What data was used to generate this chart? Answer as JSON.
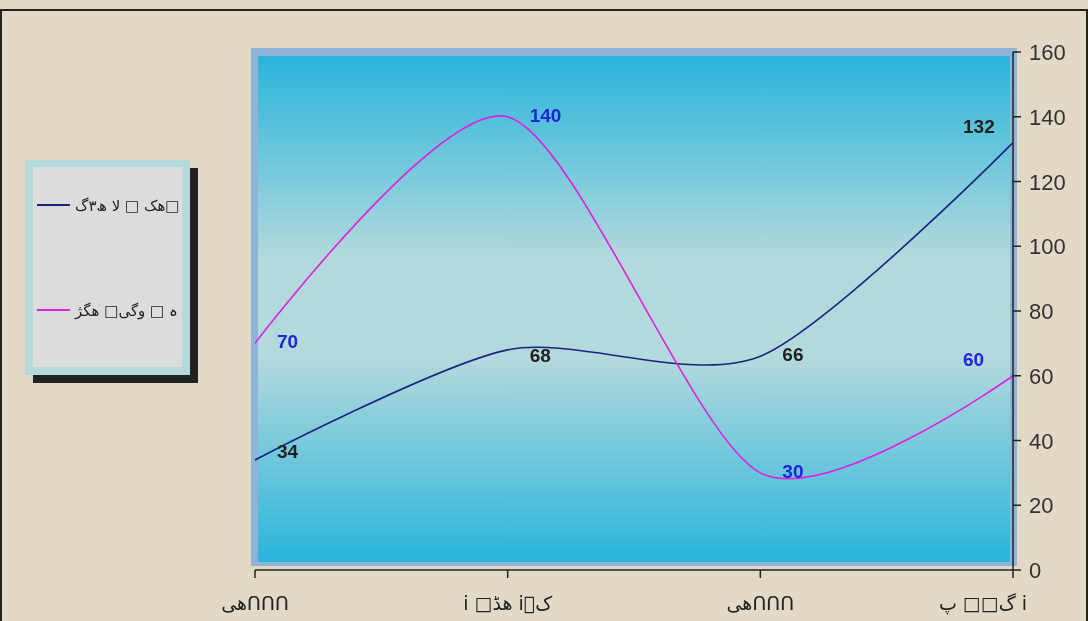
{
  "chart_data": {
    "type": "line",
    "categories": [
      "ھیՈՈՈ",
      "i □ھڈ iکٖ",
      "ھیՈՈՈ",
      "گ□□ پ i"
    ],
    "series": [
      {
        "name": "ھک □ لا ھ۳گ□",
        "color": "#1a237e",
        "values": [
          34,
          68,
          66,
          132
        ]
      },
      {
        "name": "ہ □ وگی□ ھگژ",
        "color": "#e020e0",
        "values": [
          70,
          140,
          30,
          60
        ]
      }
    ],
    "ylim": [
      0,
      160
    ],
    "yticks": [
      0,
      20,
      40,
      60,
      80,
      100,
      120,
      140,
      160
    ],
    "data_labels": true,
    "legend": "left",
    "grid": false,
    "marker": "none",
    "line_style": "solid"
  }
}
